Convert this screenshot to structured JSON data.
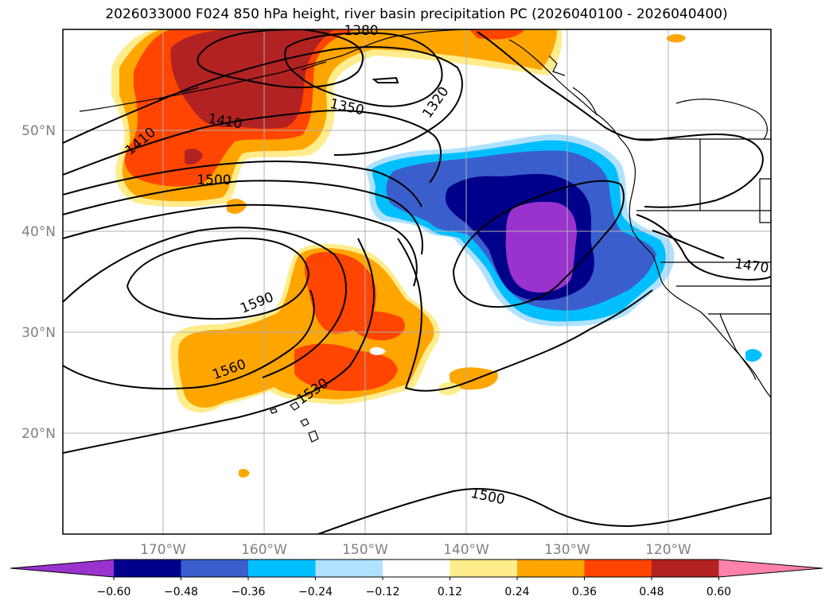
{
  "title": "2026033000 F024 850 hPa height, river basin precipitation PC (2026040100 - 2026040400)",
  "latitude_labels": [
    "50°N",
    "40°N",
    "30°N",
    "20°N"
  ],
  "longitude_labels": [
    "170°W",
    "160°W",
    "150°W",
    "140°W",
    "130°W",
    "120°W"
  ],
  "contour_labels": [
    "1380",
    "1410",
    "1350",
    "1320",
    "1410",
    "1500",
    "1590",
    "1560",
    "1530",
    "1500",
    "1470"
  ],
  "colorbar": {
    "ticks": [
      "−0.60",
      "−0.48",
      "−0.36",
      "−0.24",
      "−0.12",
      "0.12",
      "0.24",
      "0.36",
      "0.48",
      "0.60"
    ],
    "colors": [
      "#9a32cd",
      "#00008b",
      "#3a5fcd",
      "#00bfff",
      "#b0e2ff",
      "#ffffff",
      "#ffec8b",
      "#ffa500",
      "#ff4500",
      "#b22222",
      "#ff82ab"
    ]
  },
  "chart_data": {
    "type": "map",
    "variable": "850 hPa height, river basin precipitation PC",
    "colorbar_levels": [
      -0.6,
      -0.48,
      -0.36,
      -0.24,
      -0.12,
      0.12,
      0.24,
      0.36,
      0.48,
      0.6
    ],
    "contour_values": [
      1380,
      1410,
      1350,
      1320,
      1410,
      1500,
      1590,
      1560,
      1530,
      1500,
      1470
    ],
    "lon_range": [
      -180,
      -110
    ],
    "lat_range": [
      10,
      60
    ],
    "grid": true
  }
}
